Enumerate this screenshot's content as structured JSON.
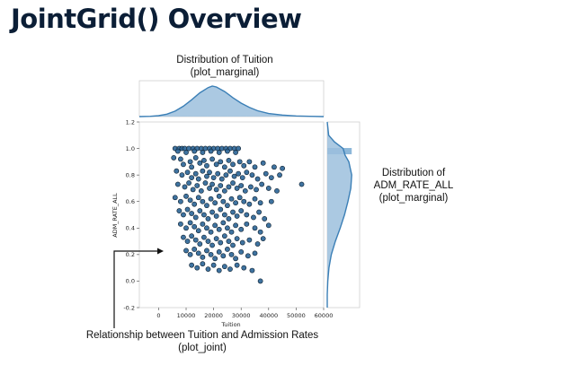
{
  "slide": {
    "title": "JointGrid() Overview"
  },
  "annotations": {
    "top": [
      "Distribution of Tuition",
      "(plot_marginal)"
    ],
    "right": [
      "Distribution of",
      "ADM_RATE_ALL",
      "(plot_marginal)"
    ],
    "bottom": [
      "Relationship between Tuition and Admission Rates",
      "(plot_joint)"
    ]
  },
  "colors": {
    "point_fill": "#2a6496",
    "point_edge": "#0d1f2e",
    "marginal_fill": "#9cc0dd",
    "marginal_line": "#3b7fb6"
  },
  "chart_data": [
    {
      "type": "scatter",
      "name": "plot_joint",
      "xlabel": "Tuition",
      "ylabel": "ADM_RATE_ALL",
      "xlim": [
        -7000,
        60000
      ],
      "ylim": [
        -0.2,
        1.2
      ],
      "xticks": [
        0,
        10000,
        20000,
        30000,
        40000,
        50000,
        60000
      ],
      "xtick_labels": [
        "0",
        "10000",
        "20000",
        "30000",
        "40000",
        "50000",
        "60000"
      ],
      "yticks": [
        -0.2,
        0.0,
        0.2,
        0.4,
        0.6,
        0.8,
        1.0,
        1.2
      ],
      "ytick_labels": [
        "-0.2",
        "0.0",
        "0.2",
        "0.4",
        "0.6",
        "0.8",
        "1.0",
        "1.2"
      ],
      "points": [
        [
          6000,
          1.0
        ],
        [
          7500,
          1.0
        ],
        [
          8500,
          1.0
        ],
        [
          9500,
          1.0
        ],
        [
          11000,
          1.0
        ],
        [
          12500,
          1.0
        ],
        [
          14000,
          1.0
        ],
        [
          15500,
          1.0
        ],
        [
          17000,
          1.0
        ],
        [
          18500,
          1.0
        ],
        [
          20000,
          1.0
        ],
        [
          21500,
          1.0
        ],
        [
          23000,
          1.0
        ],
        [
          24500,
          1.0
        ],
        [
          26000,
          1.0
        ],
        [
          27500,
          1.0
        ],
        [
          29000,
          1.0
        ],
        [
          7000,
          0.98
        ],
        [
          10000,
          0.97
        ],
        [
          13000,
          0.98
        ],
        [
          16000,
          0.97
        ],
        [
          19000,
          0.98
        ],
        [
          22000,
          0.97
        ],
        [
          25000,
          0.98
        ],
        [
          28000,
          0.97
        ],
        [
          5500,
          0.93
        ],
        [
          8000,
          0.92
        ],
        [
          9000,
          0.88
        ],
        [
          11500,
          0.9
        ],
        [
          12000,
          0.86
        ],
        [
          13500,
          0.93
        ],
        [
          15000,
          0.89
        ],
        [
          16500,
          0.91
        ],
        [
          17500,
          0.87
        ],
        [
          19500,
          0.92
        ],
        [
          21000,
          0.88
        ],
        [
          22500,
          0.9
        ],
        [
          24000,
          0.86
        ],
        [
          25500,
          0.91
        ],
        [
          27000,
          0.88
        ],
        [
          29500,
          0.9
        ],
        [
          31000,
          0.87
        ],
        [
          33000,
          0.9
        ],
        [
          35000,
          0.86
        ],
        [
          38000,
          0.89
        ],
        [
          42000,
          0.86
        ],
        [
          45000,
          0.85
        ],
        [
          6500,
          0.83
        ],
        [
          8500,
          0.8
        ],
        [
          10500,
          0.82
        ],
        [
          12000,
          0.78
        ],
        [
          13500,
          0.81
        ],
        [
          14500,
          0.77
        ],
        [
          16000,
          0.83
        ],
        [
          17500,
          0.79
        ],
        [
          18500,
          0.82
        ],
        [
          20000,
          0.78
        ],
        [
          21500,
          0.81
        ],
        [
          23000,
          0.77
        ],
        [
          24500,
          0.8
        ],
        [
          26000,
          0.83
        ],
        [
          27500,
          0.79
        ],
        [
          29000,
          0.81
        ],
        [
          30500,
          0.78
        ],
        [
          32000,
          0.82
        ],
        [
          34000,
          0.8
        ],
        [
          36000,
          0.77
        ],
        [
          39000,
          0.81
        ],
        [
          41000,
          0.78
        ],
        [
          44000,
          0.8
        ],
        [
          52000,
          0.73
        ],
        [
          7000,
          0.73
        ],
        [
          9500,
          0.71
        ],
        [
          11000,
          0.74
        ],
        [
          12500,
          0.69
        ],
        [
          14000,
          0.72
        ],
        [
          15500,
          0.68
        ],
        [
          17000,
          0.74
        ],
        [
          18500,
          0.7
        ],
        [
          19500,
          0.73
        ],
        [
          21000,
          0.69
        ],
        [
          22500,
          0.72
        ],
        [
          24000,
          0.68
        ],
        [
          25500,
          0.71
        ],
        [
          27000,
          0.74
        ],
        [
          28500,
          0.7
        ],
        [
          30000,
          0.72
        ],
        [
          31500,
          0.68
        ],
        [
          33500,
          0.71
        ],
        [
          35500,
          0.69
        ],
        [
          37500,
          0.73
        ],
        [
          40000,
          0.7
        ],
        [
          43000,
          0.68
        ],
        [
          6000,
          0.63
        ],
        [
          8000,
          0.6
        ],
        [
          10000,
          0.64
        ],
        [
          11500,
          0.61
        ],
        [
          13000,
          0.58
        ],
        [
          14500,
          0.63
        ],
        [
          16000,
          0.6
        ],
        [
          17500,
          0.57
        ],
        [
          19000,
          0.62
        ],
        [
          20500,
          0.59
        ],
        [
          22000,
          0.64
        ],
        [
          23500,
          0.6
        ],
        [
          25000,
          0.57
        ],
        [
          26500,
          0.62
        ],
        [
          28000,
          0.59
        ],
        [
          29500,
          0.63
        ],
        [
          31000,
          0.6
        ],
        [
          33000,
          0.58
        ],
        [
          35000,
          0.62
        ],
        [
          37000,
          0.59
        ],
        [
          41000,
          0.6
        ],
        [
          7500,
          0.53
        ],
        [
          9000,
          0.5
        ],
        [
          10500,
          0.54
        ],
        [
          12000,
          0.51
        ],
        [
          13500,
          0.48
        ],
        [
          15000,
          0.53
        ],
        [
          16500,
          0.5
        ],
        [
          18000,
          0.47
        ],
        [
          19500,
          0.52
        ],
        [
          21000,
          0.49
        ],
        [
          22500,
          0.54
        ],
        [
          24000,
          0.5
        ],
        [
          25500,
          0.47
        ],
        [
          27000,
          0.52
        ],
        [
          28500,
          0.49
        ],
        [
          30000,
          0.53
        ],
        [
          32000,
          0.5
        ],
        [
          34500,
          0.48
        ],
        [
          36500,
          0.52
        ],
        [
          38500,
          0.47
        ],
        [
          8000,
          0.43
        ],
        [
          10000,
          0.4
        ],
        [
          11500,
          0.44
        ],
        [
          13000,
          0.41
        ],
        [
          14500,
          0.38
        ],
        [
          16000,
          0.43
        ],
        [
          17500,
          0.4
        ],
        [
          19000,
          0.37
        ],
        [
          20500,
          0.42
        ],
        [
          22000,
          0.39
        ],
        [
          23500,
          0.44
        ],
        [
          25000,
          0.4
        ],
        [
          26500,
          0.37
        ],
        [
          28000,
          0.42
        ],
        [
          30000,
          0.39
        ],
        [
          32000,
          0.43
        ],
        [
          35000,
          0.4
        ],
        [
          37000,
          0.37
        ],
        [
          40000,
          0.42
        ],
        [
          9000,
          0.33
        ],
        [
          10500,
          0.3
        ],
        [
          12000,
          0.34
        ],
        [
          13500,
          0.31
        ],
        [
          15000,
          0.28
        ],
        [
          16500,
          0.33
        ],
        [
          18000,
          0.3
        ],
        [
          19500,
          0.27
        ],
        [
          21000,
          0.32
        ],
        [
          22500,
          0.29
        ],
        [
          24000,
          0.34
        ],
        [
          25500,
          0.3
        ],
        [
          27000,
          0.27
        ],
        [
          28500,
          0.32
        ],
        [
          30500,
          0.29
        ],
        [
          33000,
          0.31
        ],
        [
          36000,
          0.28
        ],
        [
          38000,
          0.32
        ],
        [
          10000,
          0.23
        ],
        [
          11500,
          0.2
        ],
        [
          13000,
          0.24
        ],
        [
          14500,
          0.21
        ],
        [
          16000,
          0.18
        ],
        [
          17500,
          0.23
        ],
        [
          19000,
          0.2
        ],
        [
          20500,
          0.17
        ],
        [
          22000,
          0.22
        ],
        [
          23500,
          0.19
        ],
        [
          25000,
          0.24
        ],
        [
          26500,
          0.2
        ],
        [
          28000,
          0.17
        ],
        [
          30000,
          0.22
        ],
        [
          32500,
          0.19
        ],
        [
          35000,
          0.21
        ],
        [
          12000,
          0.12
        ],
        [
          14000,
          0.1
        ],
        [
          16000,
          0.13
        ],
        [
          18000,
          0.09
        ],
        [
          20000,
          0.12
        ],
        [
          22000,
          0.08
        ],
        [
          24000,
          0.11
        ],
        [
          26000,
          0.09
        ],
        [
          28500,
          0.12
        ],
        [
          31000,
          0.1
        ],
        [
          34000,
          0.08
        ],
        [
          37000,
          0.0
        ]
      ]
    },
    {
      "type": "area",
      "name": "marginal_x",
      "description_axis": "Tuition",
      "x": [
        -7000,
        -3000,
        0,
        3000,
        6000,
        9000,
        12000,
        15000,
        18000,
        19500,
        21000,
        24000,
        27000,
        30000,
        33000,
        36000,
        40000,
        45000,
        50000,
        55000,
        60000
      ],
      "density": [
        0.0,
        0.01,
        0.03,
        0.08,
        0.18,
        0.34,
        0.55,
        0.78,
        0.95,
        1.0,
        0.97,
        0.82,
        0.62,
        0.44,
        0.3,
        0.19,
        0.1,
        0.05,
        0.02,
        0.01,
        0.0
      ]
    },
    {
      "type": "area",
      "name": "marginal_y",
      "description_axis": "ADM_RATE_ALL",
      "y": [
        -0.2,
        -0.1,
        0.0,
        0.1,
        0.2,
        0.3,
        0.4,
        0.5,
        0.6,
        0.7,
        0.8,
        0.9,
        0.95,
        1.0,
        1.05,
        1.1,
        1.2
      ],
      "density": [
        0.0,
        0.0,
        0.02,
        0.06,
        0.14,
        0.28,
        0.45,
        0.6,
        0.72,
        0.82,
        0.85,
        0.75,
        0.62,
        0.55,
        0.25,
        0.05,
        0.0
      ],
      "highlight_bar": {
        "y": 0.98,
        "density": 0.85
      }
    }
  ]
}
